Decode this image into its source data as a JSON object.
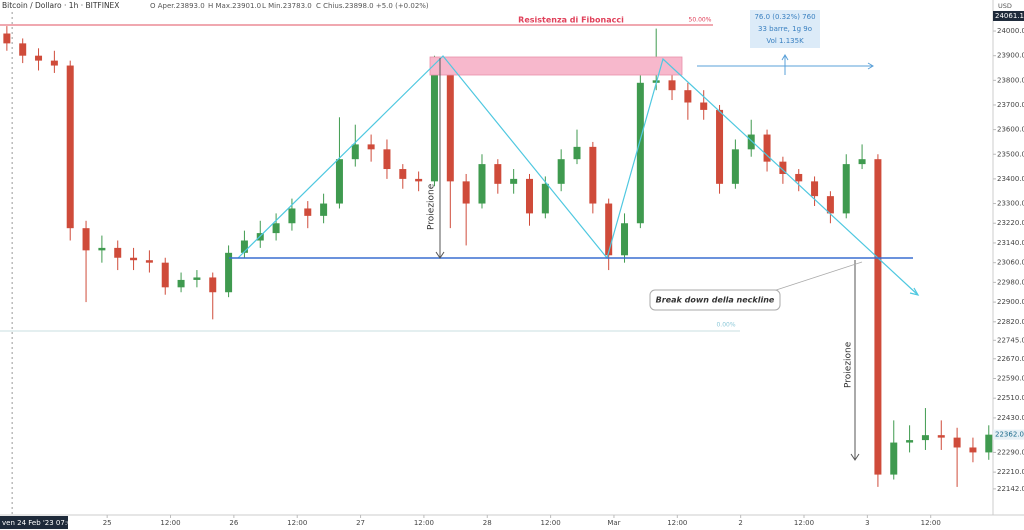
{
  "chart_data": {
    "type": "candlestick",
    "header": {
      "symbol": "Bitcoin / Dollaro · 1h · BITFINEX",
      "ohlc": [
        "O Aper.23893.0",
        "H Max.23901.0",
        "L Min.23783.0",
        "C Chius.23898.0 +5.0 (+0.02%)"
      ]
    },
    "currency": "USD",
    "x": [
      -2,
      1,
      4,
      7,
      10,
      13,
      16,
      19,
      22,
      25,
      28,
      31,
      34,
      37,
      40,
      43,
      46,
      49,
      52,
      55,
      58,
      61,
      64,
      67,
      70,
      73,
      76,
      79,
      82,
      85,
      88,
      91,
      94,
      97,
      100,
      103,
      106,
      109,
      112,
      115,
      118,
      121,
      124,
      127,
      130,
      133,
      136,
      139,
      142,
      145,
      148,
      151,
      154,
      157,
      160,
      163,
      166,
      169,
      172,
      175,
      178,
      181,
      184
    ],
    "open": [
      23990,
      23950,
      23900,
      23880,
      23860,
      23200,
      23110,
      23120,
      23080,
      23070,
      23060,
      22960,
      22990,
      23000,
      22940,
      23100,
      23150,
      23180,
      23220,
      23280,
      23250,
      23300,
      23480,
      23540,
      23520,
      23440,
      23400,
      23390,
      23830,
      23390,
      23300,
      23460,
      23380,
      23400,
      23260,
      23380,
      23480,
      23530,
      23300,
      23090,
      23220,
      23790,
      23800,
      23760,
      23710,
      23680,
      23380,
      23520,
      23580,
      23470,
      23420,
      23390,
      23330,
      23260,
      23460,
      23480,
      22200,
      22330,
      22340,
      22360,
      22350,
      22310,
      22290
    ],
    "high": [
      24020,
      23970,
      23930,
      23920,
      23880,
      23230,
      23170,
      23150,
      23120,
      23110,
      23080,
      23020,
      23030,
      23020,
      23130,
      23190,
      23230,
      23260,
      23320,
      23310,
      23340,
      23650,
      23620,
      23580,
      23560,
      23460,
      23430,
      23900,
      23850,
      23420,
      23500,
      23480,
      23440,
      23420,
      23410,
      23520,
      23600,
      23550,
      23320,
      23260,
      23820,
      24010,
      23860,
      23790,
      23760,
      23700,
      23560,
      23640,
      23600,
      23490,
      23440,
      23410,
      23350,
      23500,
      23540,
      23500,
      22420,
      22400,
      22470,
      22420,
      22390,
      22350,
      22400
    ],
    "low": [
      23920,
      23870,
      23840,
      23830,
      23150,
      22900,
      23060,
      23030,
      23030,
      23020,
      22930,
      22940,
      22960,
      22830,
      22920,
      23080,
      23120,
      23150,
      23190,
      23200,
      23220,
      23280,
      23450,
      23470,
      23400,
      23360,
      23350,
      23370,
      23200,
      23130,
      23280,
      23340,
      23340,
      23210,
      23240,
      23350,
      23460,
      23260,
      23030,
      23060,
      23200,
      23760,
      23720,
      23640,
      23640,
      23340,
      23360,
      23490,
      23430,
      23380,
      23350,
      23290,
      23220,
      23240,
      23440,
      22150,
      22180,
      22290,
      22300,
      22300,
      22150,
      22250,
      22260
    ],
    "close": [
      23950,
      23900,
      23880,
      23860,
      23200,
      23110,
      23120,
      23080,
      23070,
      23060,
      22960,
      22990,
      23000,
      22940,
      23100,
      23150,
      23180,
      23220,
      23280,
      23250,
      23300,
      23480,
      23540,
      23520,
      23440,
      23400,
      23390,
      23830,
      23390,
      23300,
      23460,
      23380,
      23400,
      23260,
      23380,
      23480,
      23530,
      23300,
      23090,
      23220,
      23790,
      23800,
      23760,
      23710,
      23680,
      23380,
      23520,
      23580,
      23470,
      23420,
      23390,
      23330,
      23260,
      23460,
      23480,
      22200,
      22330,
      22340,
      22360,
      22350,
      22310,
      22290,
      22362
    ],
    "up_color": "#3f9a4f",
    "down_color": "#cf4b3a",
    "xlim": [
      -3.3,
      184.8
    ],
    "xticks": [
      {
        "value": 17,
        "label": "25"
      },
      {
        "value": 29,
        "label": "12:00"
      },
      {
        "value": 41,
        "label": "26"
      },
      {
        "value": 53,
        "label": "12:00"
      },
      {
        "value": 65,
        "label": "27"
      },
      {
        "value": 77,
        "label": "12:00"
      },
      {
        "value": 89,
        "label": "28"
      },
      {
        "value": 101,
        "label": "12:00"
      },
      {
        "value": 113,
        "label": "Mar"
      },
      {
        "value": 125,
        "label": "12:00"
      },
      {
        "value": 137,
        "label": "2"
      },
      {
        "value": 149,
        "label": "12:00"
      },
      {
        "value": 161,
        "label": "3"
      },
      {
        "value": 173,
        "label": "12:00"
      }
    ],
    "crosshair_time": {
      "value": -1,
      "label": "ven 24 Feb '23 07:00"
    },
    "ylim": [
      22036,
      24126
    ],
    "yticks": [
      {
        "value": 24000,
        "label": "24000.0"
      },
      {
        "value": 23900,
        "label": "23900.0"
      },
      {
        "value": 23800,
        "label": "23800.0"
      },
      {
        "value": 23700,
        "label": "23700.0"
      },
      {
        "value": 23600,
        "label": "23600.0"
      },
      {
        "value": 23500,
        "label": "23500.0"
      },
      {
        "value": 23400,
        "label": "23400.0"
      },
      {
        "value": 23300,
        "label": "23300.0"
      },
      {
        "value": 23220,
        "label": "23220.0"
      },
      {
        "value": 23140,
        "label": "23140.0"
      },
      {
        "value": 23060,
        "label": "23060.0"
      },
      {
        "value": 22980,
        "label": "22980.0"
      },
      {
        "value": 22900,
        "label": "22900.0"
      },
      {
        "value": 22820,
        "label": "22820.0"
      },
      {
        "value": 22745,
        "label": "22745.0"
      },
      {
        "value": 22670,
        "label": "22670.0"
      },
      {
        "value": 22590,
        "label": "22590.0"
      },
      {
        "value": 22510,
        "label": "22510.0"
      },
      {
        "value": 22430,
        "label": "22430.0"
      },
      {
        "value": 22290,
        "label": "22290.0"
      },
      {
        "value": 22210,
        "label": "22210.0"
      },
      {
        "value": 22142,
        "label": "22142.0"
      }
    ],
    "crosshair_price": {
      "value": 24061.1,
      "label": "24061.1"
    },
    "last_price": {
      "value": 22362,
      "label": "22362.0"
    },
    "grid": false,
    "annotations": {
      "fib_title": "Resistenza di Fibonacci",
      "fib_50": "50.00%",
      "fib_0": "0.00%",
      "projection_1": "Proiezione",
      "projection_2": "Proiezione",
      "breakdown": "Break down della neckline",
      "measure": [
        "76.0 (0.32%) 760",
        "33 barre, 1g 9o",
        "Vol 1.135K"
      ]
    }
  }
}
